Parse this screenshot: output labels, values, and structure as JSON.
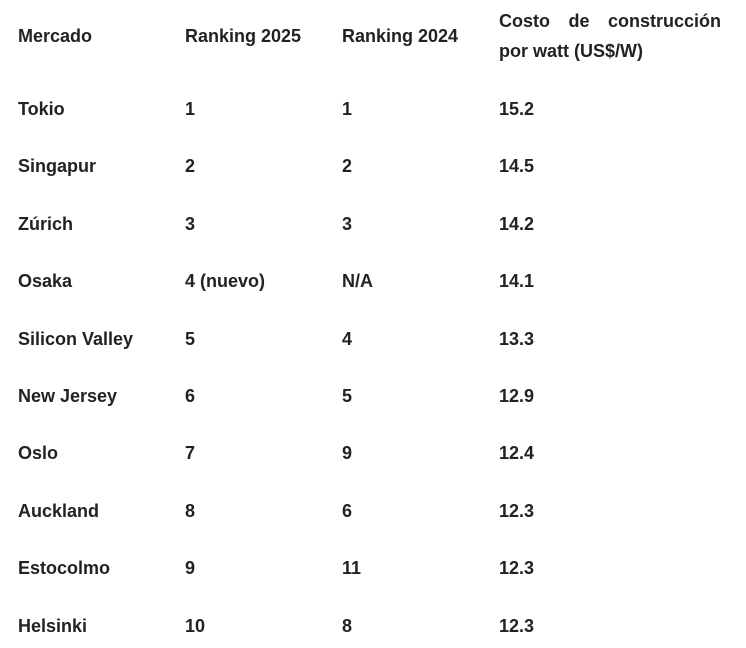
{
  "table": {
    "header": [
      "Mercado",
      "Ranking 2025",
      "Ranking 2024",
      "Costo de construcción por watt (US$/W)"
    ],
    "rows": [
      [
        "Tokio",
        "1",
        "1",
        "15.2"
      ],
      [
        "Singapur",
        "2",
        "2",
        "14.5"
      ],
      [
        "Zúrich",
        "3",
        "3",
        "14.2"
      ],
      [
        "Osaka",
        "4 (nuevo)",
        "N/A",
        "14.1"
      ],
      [
        "Silicon Valley",
        "5",
        "4",
        "13.3"
      ],
      [
        "New Jersey",
        "6",
        "5",
        "12.9"
      ],
      [
        "Oslo",
        "7",
        "9",
        "12.4"
      ],
      [
        "Auckland",
        "8",
        "6",
        "12.3"
      ],
      [
        "Estocolmo",
        "9",
        "11",
        "12.3"
      ],
      [
        "Helsinki",
        "10",
        "8",
        "12.3"
      ]
    ]
  }
}
